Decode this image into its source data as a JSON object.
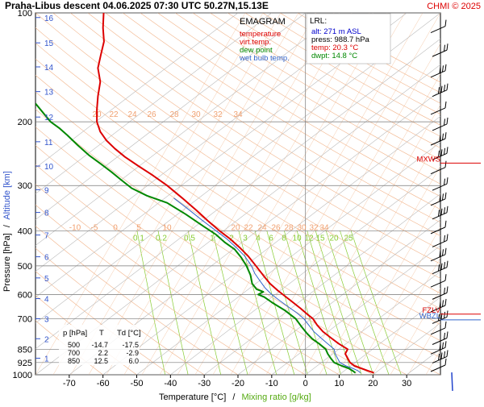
{
  "header": {
    "title": "Praha-Libus   descent   04.06.2025 07:30 UTC  50.27N,15.13E",
    "credit": "CHMI © 2025"
  },
  "legend": {
    "diagram_name": "EMAGRAM",
    "items": [
      {
        "label": "temperature",
        "color": "#dd0000"
      },
      {
        "label": "virt.temp.",
        "color": "#dd0000"
      },
      {
        "label": "dew point",
        "color": "#008800"
      },
      {
        "label": "wet bulb temp.",
        "color": "#3366cc"
      }
    ]
  },
  "lrl_box": {
    "title": "LRL:",
    "lines": [
      {
        "text": "alt: 271 m ASL",
        "color": "#0000cc"
      },
      {
        "text": "press: 988.7 hPa",
        "color": "#000000"
      },
      {
        "text": "temp: 20.3 °C",
        "color": "#dd0000"
      },
      {
        "text": "dwpt: 14.8 °C",
        "color": "#008800"
      }
    ]
  },
  "level_table": {
    "headers": [
      "p [hPa]",
      "T",
      "Td [°C]"
    ],
    "rows": [
      [
        "500",
        "-14.7",
        "-17.5"
      ],
      [
        "700",
        "2.2",
        "-2.9"
      ],
      [
        "850",
        "12.5",
        "6.0"
      ]
    ]
  },
  "markers": {
    "mxws": {
      "label": "MXWS",
      "pressure": 260,
      "color": "#dd0000"
    },
    "fzlv": {
      "label": "FZLV",
      "pressure": 680,
      "color": "#dd0000"
    },
    "wbzl": {
      "label": "WBZL",
      "pressure": 705,
      "color": "#3366cc"
    }
  },
  "axis_text": {
    "xlabel_temp": "Temperature [°C]",
    "xlabel_sep": "/",
    "xlabel_mix": "Mixing ratio [g/kg]",
    "ylabel_pressure": "Pressure [hPa]",
    "ylabel_sep": "/",
    "ylabel_altitude": "Altitude [km]"
  },
  "chart_data": {
    "type": "line",
    "title": "Praha-Libus   descent   04.06.2025 07:30 UTC  50.27N,15.13E",
    "xlabel": "Temperature [°C] / Mixing ratio [g/kg]",
    "ylabel": "Pressure [hPa] / Altitude [km]",
    "xlim": [
      -80,
      40
    ],
    "ylim": [
      1000,
      100
    ],
    "y_scale": "log",
    "grid": true,
    "x_ticks": [
      -70,
      -60,
      -50,
      -40,
      -30,
      -20,
      -10,
      0,
      10,
      20,
      30
    ],
    "y_ticks": [
      100,
      200,
      300,
      400,
      500,
      600,
      700,
      850,
      925,
      1000
    ],
    "altitude_ticks_km": [
      {
        "km": 1,
        "p": 900
      },
      {
        "km": 2,
        "p": 795
      },
      {
        "km": 3,
        "p": 700
      },
      {
        "km": 4,
        "p": 616
      },
      {
        "km": 5,
        "p": 540
      },
      {
        "km": 6,
        "p": 472
      },
      {
        "km": 7,
        "p": 411
      },
      {
        "km": 8,
        "p": 356
      },
      {
        "km": 9,
        "p": 308
      },
      {
        "km": 10,
        "p": 265
      },
      {
        "km": 11,
        "p": 227
      },
      {
        "km": 12,
        "p": 194
      },
      {
        "km": 13,
        "p": 165
      },
      {
        "km": 14,
        "p": 141
      },
      {
        "km": 15,
        "p": 121
      },
      {
        "km": 16,
        "p": 103
      }
    ],
    "mixing_ratio_labels_lower": [
      "0.1",
      "0.2",
      "0.5",
      "1",
      "2",
      "3",
      "4",
      "6",
      "8",
      "10",
      "12",
      "15",
      "20",
      "25"
    ],
    "mixing_ratio_labels_upper": [
      "20",
      "22",
      "24",
      "26",
      "28",
      "30",
      "32",
      "34"
    ],
    "mixing_ratio_labels_top": [
      "20",
      "22",
      "24",
      "26",
      "28",
      "30",
      "32",
      "34"
    ],
    "dry_adiabat_labels": [
      "-10",
      "-5",
      "0",
      "5",
      "10"
    ],
    "series": [
      {
        "name": "temperature",
        "color": "#dd0000",
        "points": [
          [
            20.3,
            988
          ],
          [
            18.5,
            975
          ],
          [
            16.5,
            960
          ],
          [
            14.5,
            945
          ],
          [
            13.2,
            925
          ],
          [
            12.5,
            900
          ],
          [
            11.8,
            875
          ],
          [
            12.5,
            850
          ],
          [
            9.8,
            820
          ],
          [
            7.5,
            790
          ],
          [
            5.2,
            760
          ],
          [
            3.5,
            730
          ],
          [
            2.2,
            700
          ],
          [
            0.5,
            680
          ],
          [
            -1.5,
            655
          ],
          [
            -3.8,
            630
          ],
          [
            -6.2,
            605
          ],
          [
            -8.2,
            585
          ],
          [
            -10.5,
            560
          ],
          [
            -12.6,
            530
          ],
          [
            -14.7,
            500
          ],
          [
            -17.0,
            470
          ],
          [
            -19.5,
            445
          ],
          [
            -22.5,
            420
          ],
          [
            -25.5,
            400
          ],
          [
            -29.0,
            375
          ],
          [
            -32.5,
            350
          ],
          [
            -36.5,
            325
          ],
          [
            -41.0,
            300
          ],
          [
            -45.5,
            280
          ],
          [
            -49.5,
            265
          ],
          [
            -53.5,
            250
          ],
          [
            -56.5,
            237
          ],
          [
            -59.0,
            225
          ],
          [
            -60.8,
            213
          ],
          [
            -61.8,
            200
          ],
          [
            -61.8,
            185
          ],
          [
            -61.5,
            170
          ],
          [
            -60.8,
            155
          ],
          [
            -61.5,
            142
          ],
          [
            -60.6,
            130
          ],
          [
            -59.7,
            120
          ],
          [
            -60.0,
            110
          ],
          [
            -59.8,
            100
          ]
        ]
      },
      {
        "name": "dew point",
        "color": "#008800",
        "points": [
          [
            14.8,
            988
          ],
          [
            14.0,
            975
          ],
          [
            12.8,
            960
          ],
          [
            10.8,
            945
          ],
          [
            8.5,
            925
          ],
          [
            7.5,
            900
          ],
          [
            6.6,
            875
          ],
          [
            6.0,
            850
          ],
          [
            4.0,
            820
          ],
          [
            2.0,
            795
          ],
          [
            0.5,
            770
          ],
          [
            -1.0,
            740
          ],
          [
            -2.9,
            700
          ],
          [
            -6.0,
            665
          ],
          [
            -9.5,
            635
          ],
          [
            -12.2,
            610
          ],
          [
            -14.0,
            600
          ],
          [
            -12.5,
            590
          ],
          [
            -14.5,
            580
          ],
          [
            -15.8,
            560
          ],
          [
            -16.3,
            530
          ],
          [
            -17.5,
            500
          ],
          [
            -19.0,
            475
          ],
          [
            -21.0,
            450
          ],
          [
            -24.0,
            430
          ],
          [
            -26.5,
            410
          ],
          [
            -30.0,
            390
          ],
          [
            -35.5,
            360
          ],
          [
            -41.0,
            335
          ],
          [
            -47.0,
            320
          ],
          [
            -51.5,
            305
          ],
          [
            -54.5,
            290
          ],
          [
            -57.5,
            275
          ],
          [
            -60.5,
            262
          ],
          [
            -64.0,
            248
          ],
          [
            -67.5,
            232
          ],
          [
            -70.5,
            218
          ],
          [
            -73.0,
            208
          ],
          [
            -75.5,
            200
          ],
          [
            -77.5,
            190
          ],
          [
            -80.0,
            178
          ]
        ]
      },
      {
        "name": "wet bulb temp.",
        "color": "#3366cc",
        "points": [
          [
            16.3,
            988
          ],
          [
            15.6,
            975
          ],
          [
            14.0,
            960
          ],
          [
            12.0,
            945
          ],
          [
            10.2,
            925
          ],
          [
            9.5,
            900
          ],
          [
            8.8,
            875
          ],
          [
            8.5,
            850
          ],
          [
            6.5,
            820
          ],
          [
            4.5,
            790
          ],
          [
            2.5,
            760
          ],
          [
            1.0,
            730
          ],
          [
            -0.5,
            700
          ],
          [
            -2.5,
            675
          ],
          [
            -5.0,
            650
          ],
          [
            -7.5,
            625
          ],
          [
            -10.0,
            600
          ],
          [
            -12.0,
            575
          ],
          [
            -13.5,
            550
          ],
          [
            -15.0,
            525
          ],
          [
            -16.0,
            500
          ],
          [
            -18.0,
            470
          ],
          [
            -20.5,
            445
          ],
          [
            -23.5,
            420
          ],
          [
            -26.5,
            400
          ],
          [
            -30.5,
            375
          ],
          [
            -34.5,
            350
          ],
          [
            -39.0,
            325
          ]
        ]
      }
    ]
  }
}
